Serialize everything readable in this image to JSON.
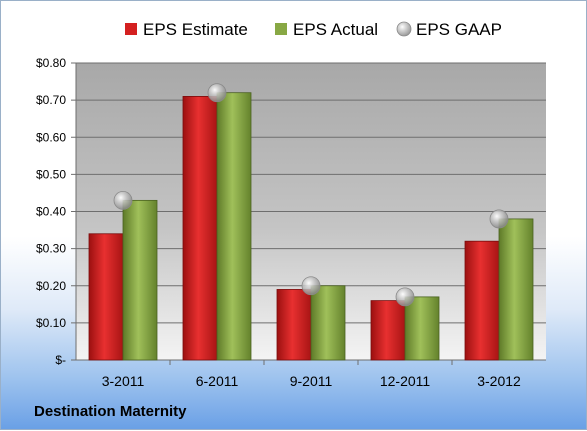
{
  "company": "Destination Maternity",
  "colors": {
    "estimate": "#d42020",
    "actual": "#88a844",
    "gaap": "#b8b8b8"
  },
  "chart_data": {
    "type": "bar",
    "categories": [
      "3-2011",
      "6-2011",
      "9-2011",
      "12-2011",
      "3-2012"
    ],
    "series": [
      {
        "name": "EPS Estimate",
        "type": "bar",
        "values": [
          0.34,
          0.71,
          0.19,
          0.16,
          0.32
        ]
      },
      {
        "name": "EPS Actual",
        "type": "bar",
        "values": [
          0.43,
          0.72,
          0.2,
          0.17,
          0.38
        ]
      },
      {
        "name": "EPS GAAP",
        "type": "scatter",
        "values": [
          0.43,
          0.72,
          0.2,
          0.17,
          0.38
        ]
      }
    ],
    "ylim": [
      0,
      0.8
    ],
    "yticks": [
      0,
      0.1,
      0.2,
      0.3,
      0.4,
      0.5,
      0.6,
      0.7,
      0.8
    ],
    "ytick_labels": [
      "$-",
      "$0.10",
      "$0.20",
      "$0.30",
      "$0.40",
      "$0.50",
      "$0.60",
      "$0.70",
      "$0.80"
    ],
    "grid": true,
    "legend_position": "top"
  }
}
